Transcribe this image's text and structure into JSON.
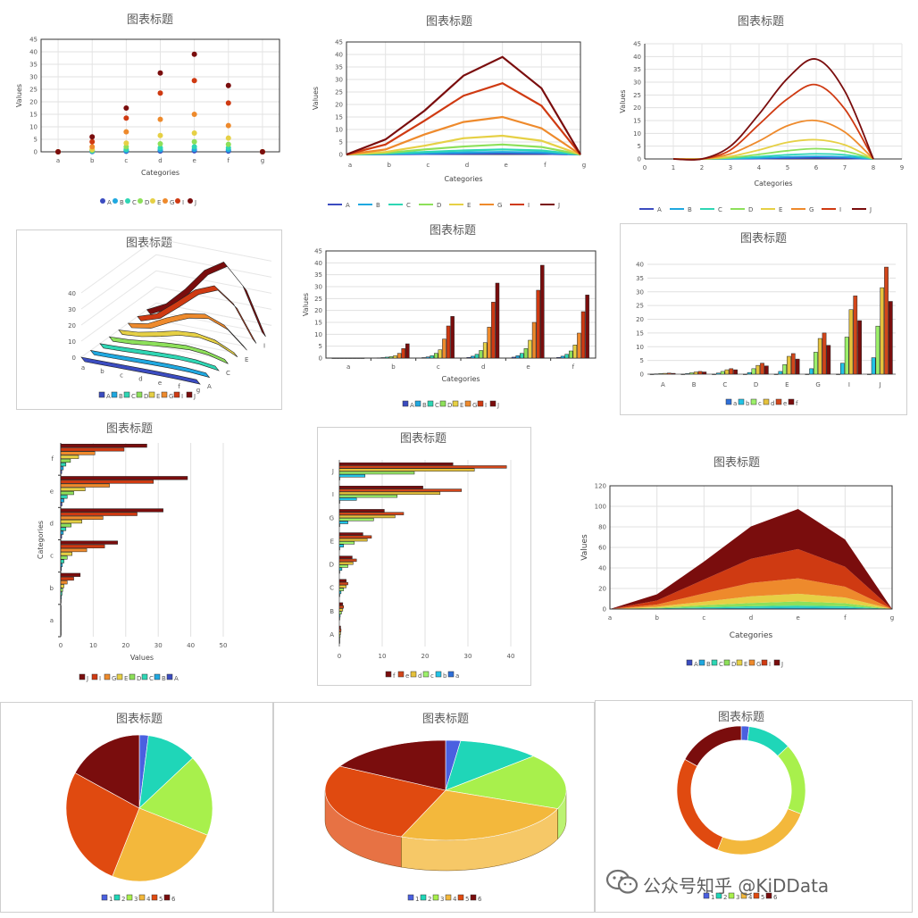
{
  "colors": {
    "A": "#3b4cc0",
    "B": "#1fa8e0",
    "C": "#2ed6b4",
    "D": "#8de05a",
    "E": "#e6d045",
    "G": "#ee8a2c",
    "I": "#cf3a12",
    "J": "#7a0d0d",
    "a": "#2f6fd8",
    "b": "#22c3e6",
    "c": "#9cf06a",
    "d": "#e6c23c",
    "e": "#d2461a",
    "f": "#7a0d0d",
    "p1": "#4a60e0",
    "p2": "#1fd6b8",
    "p3": "#a8f04c",
    "p4": "#f3b83c",
    "p5": "#e04a10",
    "p6": "#7a0d0d"
  },
  "watermark": {
    "text": "公众号知乎 @KiDData",
    "icon": "wechat-icon"
  },
  "chart_data": [
    {
      "type": "scatter",
      "title": "图表标题",
      "xlabel": "Categories",
      "ylabel": "Values",
      "categories": [
        "a",
        "b",
        "c",
        "d",
        "e",
        "f",
        "g"
      ],
      "ylim": [
        0,
        45
      ],
      "yticks": [
        0,
        5,
        10,
        15,
        20,
        25,
        30,
        35,
        40,
        45
      ],
      "legend": "bottom",
      "series": [
        {
          "name": "A",
          "values": [
            0,
            0.1,
            0.2,
            0.3,
            0.4,
            0.3,
            0
          ]
        },
        {
          "name": "B",
          "values": [
            0,
            0.2,
            0.5,
            0.8,
            1,
            0.8,
            0
          ]
        },
        {
          "name": "C",
          "values": [
            0,
            0.4,
            1,
            1.6,
            2,
            1.6,
            0
          ]
        },
        {
          "name": "D",
          "values": [
            0,
            0.6,
            2,
            3.2,
            4,
            3,
            0
          ]
        },
        {
          "name": "E",
          "values": [
            0,
            1,
            3.5,
            6.5,
            7.5,
            5.5,
            0
          ]
        },
        {
          "name": "G",
          "values": [
            0,
            2,
            8,
            13,
            15,
            10.5,
            0
          ]
        },
        {
          "name": "I",
          "values": [
            0,
            4,
            13.5,
            23.5,
            28.5,
            19.5,
            0
          ]
        },
        {
          "name": "J",
          "values": [
            0,
            6,
            17.5,
            31.5,
            39,
            26.5,
            0
          ]
        }
      ]
    },
    {
      "type": "line",
      "title": "图表标题",
      "xlabel": "Categories",
      "ylabel": "Values",
      "categories": [
        "a",
        "b",
        "c",
        "d",
        "e",
        "f",
        "g"
      ],
      "ylim": [
        0,
        45
      ],
      "yticks": [
        0,
        5,
        10,
        15,
        20,
        25,
        30,
        35,
        40,
        45
      ],
      "legend": "bottom",
      "series": [
        {
          "name": "A",
          "values": [
            0,
            0.1,
            0.2,
            0.3,
            0.4,
            0.3,
            0
          ]
        },
        {
          "name": "B",
          "values": [
            0,
            0.2,
            0.5,
            0.8,
            1,
            0.8,
            0
          ]
        },
        {
          "name": "C",
          "values": [
            0,
            0.4,
            1,
            1.6,
            2,
            1.6,
            0
          ]
        },
        {
          "name": "D",
          "values": [
            0,
            0.6,
            2,
            3.2,
            4,
            3,
            0
          ]
        },
        {
          "name": "E",
          "values": [
            0,
            1,
            3.5,
            6.5,
            7.5,
            5.5,
            0
          ]
        },
        {
          "name": "G",
          "values": [
            0,
            2,
            8,
            13,
            15,
            10.5,
            0
          ]
        },
        {
          "name": "I",
          "values": [
            0,
            4,
            13.5,
            23.5,
            28.5,
            19.5,
            0
          ]
        },
        {
          "name": "J",
          "values": [
            0,
            6,
            17.5,
            31.5,
            39,
            26.5,
            0
          ]
        }
      ]
    },
    {
      "type": "line",
      "title": "图表标题",
      "xlabel": "Categories",
      "ylabel": "Values",
      "x": [
        1,
        2,
        3,
        4,
        5,
        6,
        7,
        8
      ],
      "xlim": [
        0,
        9
      ],
      "xticks": [
        0,
        1,
        2,
        3,
        4,
        5,
        6,
        7,
        8,
        9
      ],
      "ylim": [
        0,
        45
      ],
      "yticks": [
        0,
        5,
        10,
        15,
        20,
        25,
        30,
        35,
        40,
        45
      ],
      "legend": "bottom",
      "series": [
        {
          "name": "A",
          "values": [
            0,
            0,
            0.05,
            0.15,
            0.3,
            0.4,
            0.3,
            0
          ]
        },
        {
          "name": "B",
          "values": [
            0,
            0,
            0.1,
            0.4,
            0.8,
            1,
            0.8,
            0
          ]
        },
        {
          "name": "C",
          "values": [
            0,
            0,
            0.3,
            0.9,
            1.6,
            2,
            1.6,
            0
          ]
        },
        {
          "name": "D",
          "values": [
            0,
            0,
            0.5,
            1.8,
            3.2,
            4,
            3,
            0
          ]
        },
        {
          "name": "E",
          "values": [
            0,
            0,
            1,
            3.5,
            6.5,
            7.5,
            5.5,
            0
          ]
        },
        {
          "name": "G",
          "values": [
            0,
            0,
            2,
            7,
            13,
            15,
            10.5,
            0
          ]
        },
        {
          "name": "I",
          "values": [
            0,
            0,
            3.5,
            13.5,
            23.5,
            29,
            19.5,
            0
          ]
        },
        {
          "name": "J",
          "values": [
            0,
            0,
            5,
            17.5,
            31.5,
            39,
            26.5,
            0
          ]
        }
      ]
    },
    {
      "type": "line",
      "title": "图表标题",
      "categories": [
        "a",
        "b",
        "c",
        "d",
        "e",
        "f",
        "g"
      ],
      "depth_labels": [
        "A",
        "C",
        "E",
        "I"
      ],
      "ylim": [
        0,
        45
      ],
      "yticks": [
        0,
        10,
        20,
        30,
        40
      ],
      "legend": "bottom",
      "series": [
        {
          "name": "A",
          "values": [
            0,
            0.1,
            0.2,
            0.3,
            0.4,
            0.3,
            0
          ]
        },
        {
          "name": "B",
          "values": [
            0,
            0.2,
            0.5,
            0.8,
            1,
            0.8,
            0
          ]
        },
        {
          "name": "C",
          "values": [
            0,
            0.4,
            1,
            1.6,
            2,
            1.6,
            0
          ]
        },
        {
          "name": "D",
          "values": [
            0,
            0.6,
            2,
            3.2,
            4,
            3,
            0
          ]
        },
        {
          "name": "E",
          "values": [
            0,
            1,
            3.5,
            6.5,
            7.5,
            5.5,
            0
          ]
        },
        {
          "name": "G",
          "values": [
            0,
            2,
            8,
            13,
            15,
            10.5,
            0
          ]
        },
        {
          "name": "I",
          "values": [
            0,
            4,
            13.5,
            23.5,
            28.5,
            19.5,
            0
          ]
        },
        {
          "name": "J",
          "values": [
            0,
            6,
            17.5,
            31.5,
            39,
            26.5,
            0
          ]
        }
      ]
    },
    {
      "type": "bar",
      "title": "图表标题",
      "xlabel": "Categories",
      "ylabel": "Values",
      "categories": [
        "a",
        "b",
        "c",
        "d",
        "e",
        "f"
      ],
      "ylim": [
        0,
        45
      ],
      "yticks": [
        0,
        5,
        10,
        15,
        20,
        25,
        30,
        35,
        40,
        45
      ],
      "legend": "bottom",
      "series": [
        {
          "name": "A",
          "values": [
            0,
            0.1,
            0.2,
            0.3,
            0.4,
            0.3
          ]
        },
        {
          "name": "B",
          "values": [
            0,
            0.2,
            0.5,
            0.8,
            1,
            0.8
          ]
        },
        {
          "name": "C",
          "values": [
            0,
            0.4,
            1,
            1.6,
            2,
            1.6
          ]
        },
        {
          "name": "D",
          "values": [
            0,
            0.6,
            2,
            3.2,
            4,
            3
          ]
        },
        {
          "name": "E",
          "values": [
            0,
            1,
            3.5,
            6.5,
            7.5,
            5.5
          ]
        },
        {
          "name": "G",
          "values": [
            0,
            2,
            8,
            13,
            15,
            10.5
          ]
        },
        {
          "name": "I",
          "values": [
            0,
            4,
            13.5,
            23.5,
            28.5,
            19.5
          ]
        },
        {
          "name": "J",
          "values": [
            0,
            6,
            17.5,
            31.5,
            39,
            26.5
          ]
        }
      ]
    },
    {
      "type": "bar",
      "title": "图表标题",
      "categories": [
        "A",
        "B",
        "C",
        "D",
        "E",
        "G",
        "I",
        "J"
      ],
      "ylim": [
        0,
        40
      ],
      "yticks": [
        0,
        5,
        10,
        15,
        20,
        25,
        30,
        35,
        40
      ],
      "legend": "bottom",
      "series": [
        {
          "name": "a",
          "values": [
            0,
            0,
            0,
            0,
            0,
            0,
            0,
            0
          ]
        },
        {
          "name": "b",
          "values": [
            0.1,
            0.2,
            0.4,
            0.6,
            1,
            2,
            4,
            6
          ]
        },
        {
          "name": "c",
          "values": [
            0.2,
            0.5,
            1,
            2,
            3.5,
            8,
            13.5,
            17.5
          ]
        },
        {
          "name": "d",
          "values": [
            0.3,
            0.8,
            1.6,
            3.2,
            6.5,
            13,
            23.5,
            31.5
          ]
        },
        {
          "name": "e",
          "values": [
            0.4,
            1,
            2,
            4,
            7.5,
            15,
            28.5,
            39
          ]
        },
        {
          "name": "f",
          "values": [
            0.3,
            0.8,
            1.6,
            3,
            5.5,
            10.5,
            19.5,
            26.5
          ]
        }
      ]
    },
    {
      "type": "bar",
      "orientation": "horizontal",
      "title": "图表标题",
      "xlabel": "Values",
      "ylabel": "Categories",
      "categories": [
        "a",
        "b",
        "c",
        "d",
        "e",
        "f"
      ],
      "xlim": [
        0,
        50
      ],
      "xticks": [
        0,
        10,
        20,
        30,
        40,
        50
      ],
      "legend": "bottom",
      "series": [
        {
          "name": "J",
          "values": [
            0,
            6,
            17.5,
            31.5,
            39,
            26.5
          ]
        },
        {
          "name": "I",
          "values": [
            0,
            4,
            13.5,
            23.5,
            28.5,
            19.5
          ]
        },
        {
          "name": "G",
          "values": [
            0,
            2,
            8,
            13,
            15,
            10.5
          ]
        },
        {
          "name": "E",
          "values": [
            0,
            1,
            3.5,
            6.5,
            7.5,
            5.5
          ]
        },
        {
          "name": "D",
          "values": [
            0,
            0.6,
            2,
            3.2,
            4,
            3
          ]
        },
        {
          "name": "C",
          "values": [
            0,
            0.4,
            1,
            1.6,
            2,
            1.6
          ]
        },
        {
          "name": "B",
          "values": [
            0,
            0.2,
            0.5,
            0.8,
            1,
            0.8
          ]
        },
        {
          "name": "A",
          "values": [
            0,
            0.1,
            0.2,
            0.3,
            0.4,
            0.3
          ]
        }
      ]
    },
    {
      "type": "bar",
      "orientation": "horizontal",
      "title": "图表标题",
      "categories": [
        "A",
        "B",
        "C",
        "D",
        "E",
        "G",
        "I",
        "J"
      ],
      "xlim": [
        0,
        40
      ],
      "xticks": [
        0,
        10,
        20,
        30,
        40
      ],
      "legend": "bottom",
      "series": [
        {
          "name": "f",
          "values": [
            0.3,
            0.8,
            1.6,
            3,
            5.5,
            10.5,
            19.5,
            26.5
          ]
        },
        {
          "name": "e",
          "values": [
            0.4,
            1,
            2,
            4,
            7.5,
            15,
            28.5,
            39
          ]
        },
        {
          "name": "d",
          "values": [
            0.3,
            0.8,
            1.6,
            3.2,
            6.5,
            13,
            23.5,
            31.5
          ]
        },
        {
          "name": "c",
          "values": [
            0.2,
            0.5,
            1,
            2,
            3.5,
            8,
            13.5,
            17.5
          ]
        },
        {
          "name": "b",
          "values": [
            0.1,
            0.2,
            0.4,
            0.6,
            1,
            2,
            4,
            6
          ]
        },
        {
          "name": "a",
          "values": [
            0,
            0,
            0,
            0,
            0,
            0,
            0,
            0
          ]
        }
      ]
    },
    {
      "type": "area",
      "stacked": true,
      "title": "图表标题",
      "xlabel": "Categories",
      "ylabel": "Values",
      "categories": [
        "a",
        "b",
        "c",
        "d",
        "e",
        "f",
        "g"
      ],
      "ylim": [
        0,
        120
      ],
      "yticks": [
        0,
        20,
        40,
        60,
        80,
        100,
        120
      ],
      "legend": "bottom",
      "series": [
        {
          "name": "A",
          "values": [
            0,
            0.1,
            0.2,
            0.3,
            0.4,
            0.3,
            0
          ]
        },
        {
          "name": "B",
          "values": [
            0,
            0.2,
            0.5,
            0.8,
            1,
            0.8,
            0
          ]
        },
        {
          "name": "C",
          "values": [
            0,
            0.4,
            1,
            1.6,
            2,
            1.6,
            0
          ]
        },
        {
          "name": "D",
          "values": [
            0,
            0.6,
            2,
            3.2,
            4,
            3,
            0
          ]
        },
        {
          "name": "E",
          "values": [
            0,
            1,
            3.5,
            6.5,
            7.5,
            5.5,
            0
          ]
        },
        {
          "name": "G",
          "values": [
            0,
            2,
            8,
            13,
            15,
            10.5,
            0
          ]
        },
        {
          "name": "I",
          "values": [
            0,
            4,
            13.5,
            23.5,
            28.5,
            19.5,
            0
          ]
        },
        {
          "name": "J",
          "values": [
            0,
            6,
            17.5,
            31.5,
            39,
            26.5,
            0
          ]
        }
      ]
    },
    {
      "type": "pie",
      "title": "图表标题",
      "legend": "bottom",
      "labels": [
        "1",
        "2",
        "3",
        "4",
        "5",
        "6"
      ],
      "values": [
        2,
        11,
        18,
        25,
        27,
        17
      ]
    },
    {
      "type": "pie",
      "variant": "3d",
      "title": "图表标题",
      "legend": "bottom",
      "labels": [
        "1",
        "2",
        "3",
        "4",
        "5",
        "6"
      ],
      "values": [
        2,
        11,
        18,
        25,
        27,
        17
      ]
    },
    {
      "type": "pie",
      "variant": "doughnut",
      "title": "图表标题",
      "legend": "bottom",
      "labels": [
        "1",
        "2",
        "3",
        "4",
        "5",
        "6"
      ],
      "values": [
        2,
        11,
        18,
        25,
        27,
        17
      ]
    }
  ]
}
